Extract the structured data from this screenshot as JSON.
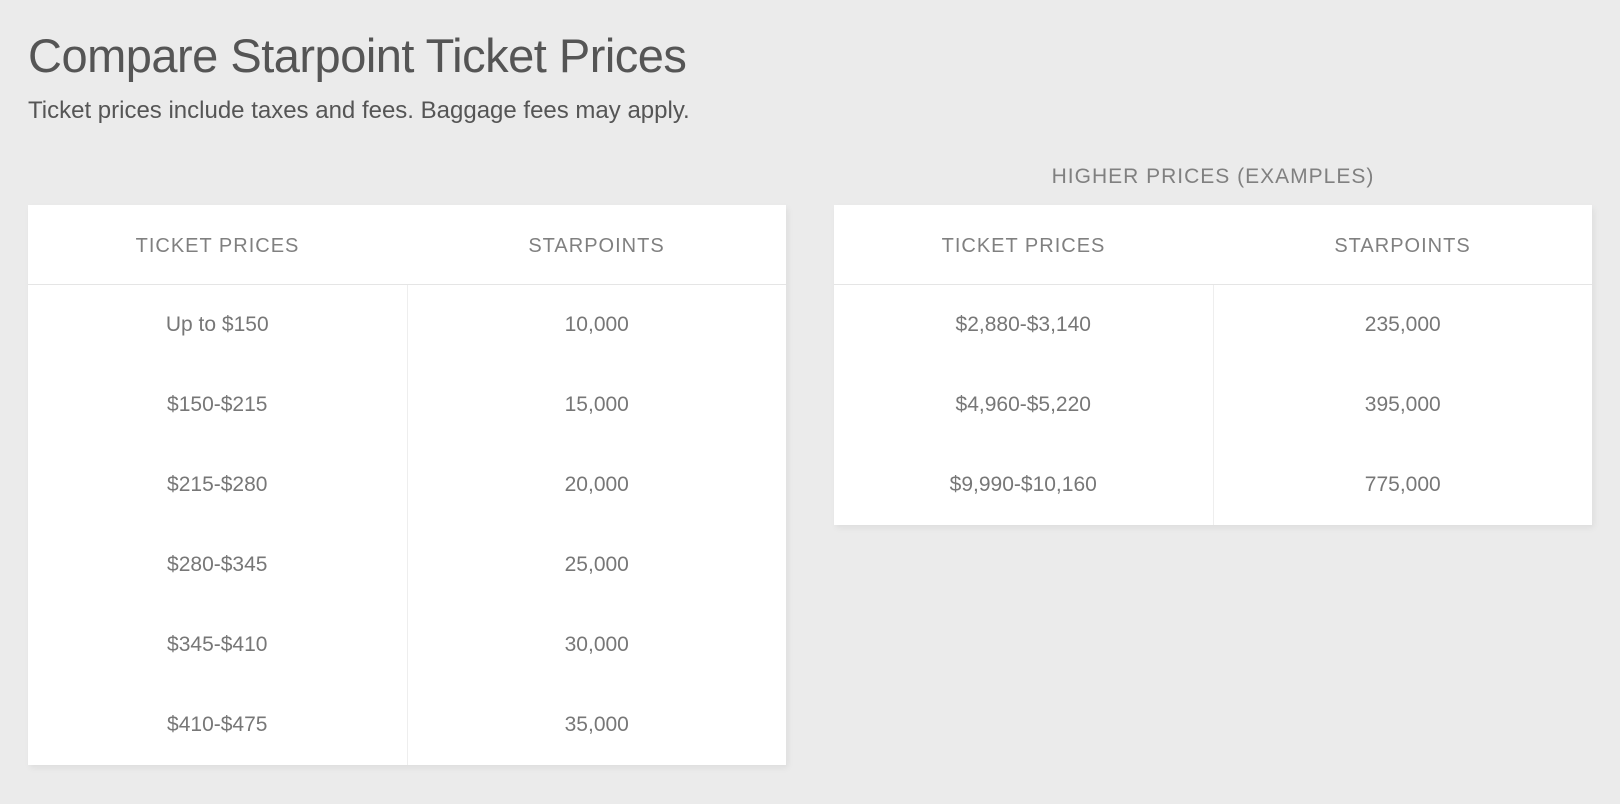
{
  "page": {
    "title": "Compare Starpoint Ticket Prices",
    "subtitle": "Ticket prices include taxes and fees. Baggage fees may apply."
  },
  "left_table": {
    "caption": "",
    "columns": [
      "TICKET PRICES",
      "STARPOINTS"
    ],
    "rows": [
      [
        "Up to $150",
        "10,000"
      ],
      [
        "$150-$215",
        "15,000"
      ],
      [
        "$215-$280",
        "20,000"
      ],
      [
        "$280-$345",
        "25,000"
      ],
      [
        "$345-$410",
        "30,000"
      ],
      [
        "$410-$475",
        "35,000"
      ]
    ]
  },
  "right_table": {
    "caption": "HIGHER PRICES (EXAMPLES)",
    "columns": [
      "TICKET PRICES",
      "STARPOINTS"
    ],
    "rows": [
      [
        "$2,880-$3,140",
        "235,000"
      ],
      [
        "$4,960-$5,220",
        "395,000"
      ],
      [
        "$9,990-$10,160",
        "775,000"
      ]
    ]
  },
  "style": {
    "background_color": "#ebebeb",
    "table_background": "#ffffff",
    "header_text_color": "#808080",
    "cell_text_color": "#777777",
    "title_color": "#555555",
    "border_color": "#e5e5e5",
    "title_fontsize": 47,
    "subtitle_fontsize": 24,
    "header_fontsize": 20,
    "cell_fontsize": 21
  }
}
